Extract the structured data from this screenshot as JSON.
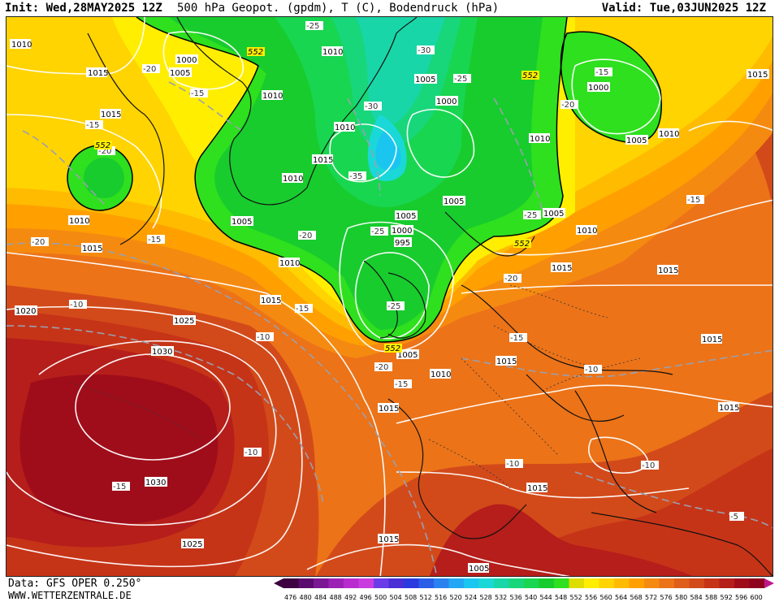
{
  "header": {
    "init": "Init: Wed,28MAY2025 12Z",
    "title": "500 hPa Geopot. (gpdm), T (C), Bodendruck (hPa)",
    "valid": "Valid: Tue,03JUN2025 12Z"
  },
  "footer": {
    "data_source": "Data: GFS OPER 0.250°",
    "website": "WWW.WETTERZENTRALE.DE"
  },
  "legend": {
    "values": [
      "476",
      "480",
      "484",
      "488",
      "492",
      "496",
      "500",
      "504",
      "508",
      "512",
      "516",
      "520",
      "524",
      "528",
      "532",
      "536",
      "540",
      "544",
      "548",
      "552",
      "556",
      "560",
      "564",
      "568",
      "572",
      "576",
      "580",
      "584",
      "588",
      "592",
      "596",
      "600"
    ],
    "colors": [
      "#3d0040",
      "#5a0a6e",
      "#7a1894",
      "#9b22b4",
      "#b82ccf",
      "#c93ce0",
      "#6a3ce8",
      "#4a2ed6",
      "#2a3adf",
      "#2a5ee8",
      "#2a82f0",
      "#22a7f4",
      "#1ac6f0",
      "#1ad8d8",
      "#18d6a8",
      "#18d67a",
      "#18d650",
      "#18cc2e",
      "#2ee01e",
      "#dddd00",
      "#ffee00",
      "#ffd400",
      "#ffbb00",
      "#ffa000",
      "#f58a10",
      "#ec7318",
      "#df5e1a",
      "#d34a1a",
      "#c63418",
      "#b51e1a",
      "#a00d1a",
      "#8e001c"
    ]
  },
  "map_labels": {
    "isobars": [
      "1010",
      "1015",
      "1000",
      "1005",
      "1010",
      "1010",
      "1005",
      "1000",
      "1010",
      "1015",
      "1010",
      "1015",
      "1005",
      "1000",
      "1010",
      "1005",
      "1005",
      "1005",
      "1000",
      "995",
      "1010",
      "1015",
      "1020",
      "1025",
      "1030",
      "1030",
      "1025",
      "1015",
      "1015",
      "1015",
      "1005",
      "1010",
      "1015",
      "1015",
      "1010",
      "1015",
      "1015",
      "1015",
      "1005",
      "1010",
      "1015",
      "1010",
      "1015",
      "1005",
      "1005",
      "1005",
      "1010"
    ],
    "temperatures": [
      "-25",
      "-30",
      "-25",
      "-20",
      "-15",
      "-15",
      "-20",
      "-30",
      "-35",
      "-20",
      "-25",
      "-20",
      "-25",
      "-15",
      "-20",
      "-15",
      "-20",
      "-15",
      "-10",
      "-10",
      "-15",
      "-10",
      "-10",
      "-20",
      "-15",
      "-10",
      "-10",
      "-15",
      "-10",
      "-5",
      "-20",
      "-25",
      "-15",
      "-20"
    ],
    "geopotential": [
      "552",
      "552",
      "552",
      "552",
      "552"
    ]
  }
}
